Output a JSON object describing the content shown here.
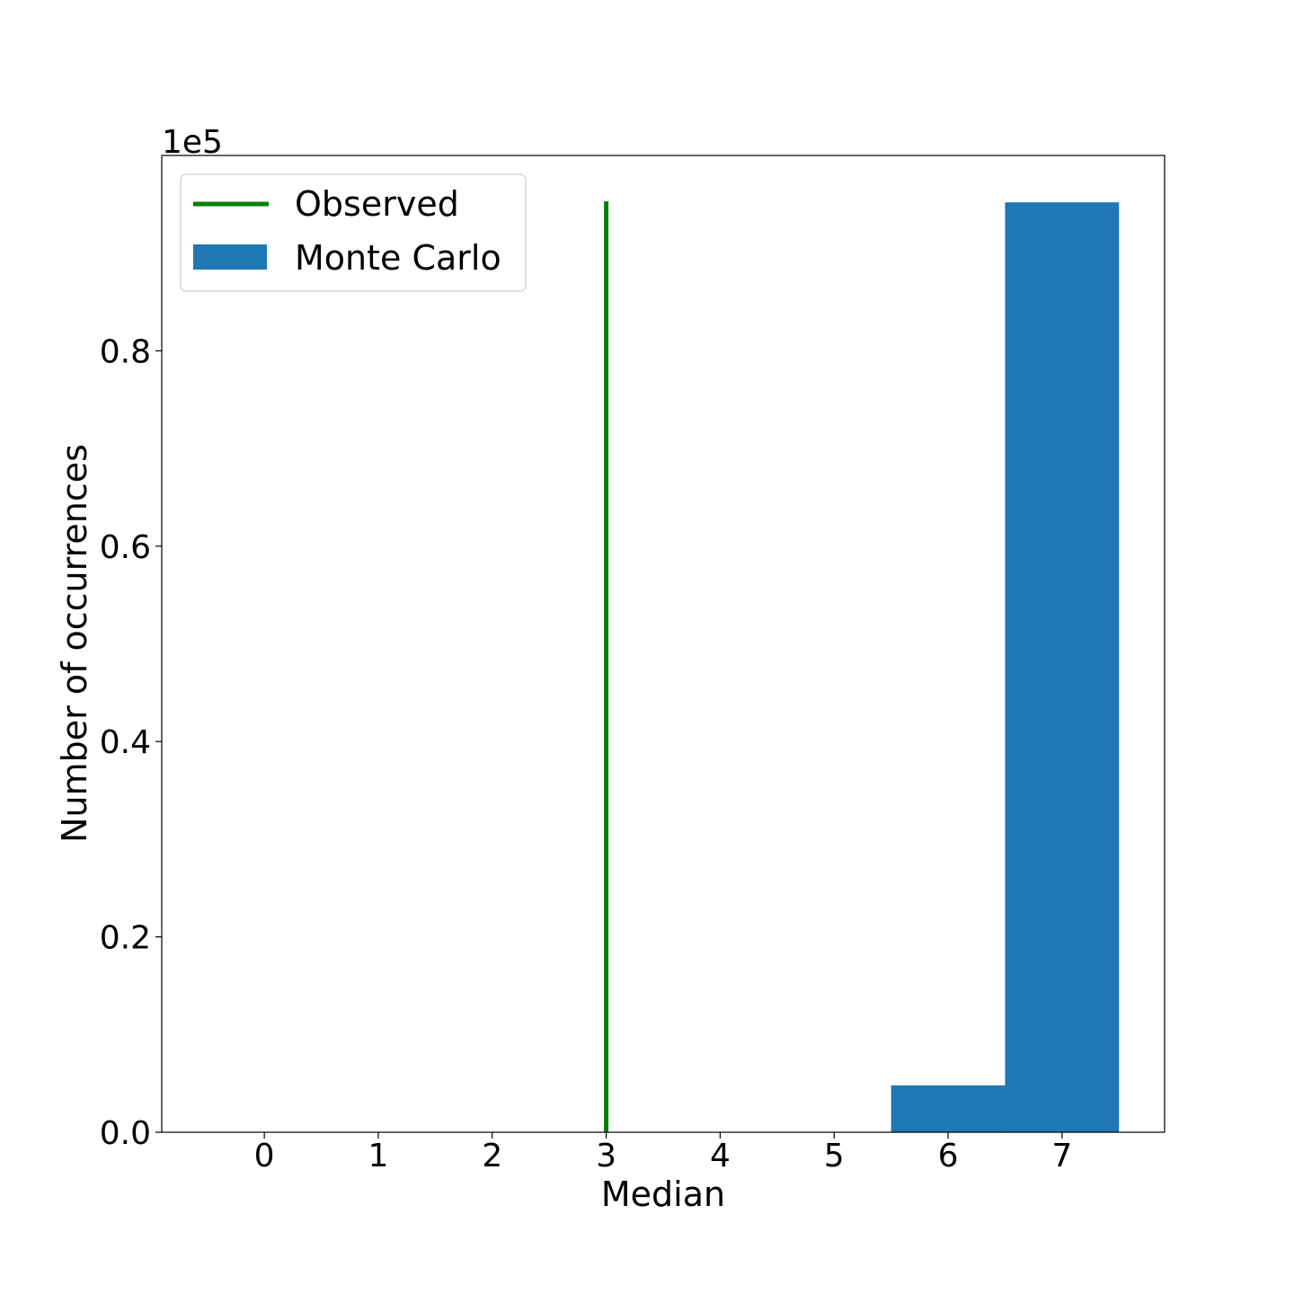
{
  "chart_data": {
    "type": "bar",
    "xlabel": "Median",
    "ylabel": "Number of occurrences",
    "y_offset_label": "1e5",
    "xlim": [
      -0.9,
      7.9
    ],
    "ylim": [
      0,
      1.0
    ],
    "x_ticks": [
      0,
      1,
      2,
      3,
      4,
      5,
      6,
      7
    ],
    "x_tick_labels": [
      "0",
      "1",
      "2",
      "3",
      "4",
      "5",
      "6",
      "7"
    ],
    "y_ticks": [
      0.0,
      0.2,
      0.4,
      0.6,
      0.8
    ],
    "y_tick_labels": [
      "0.0",
      "0.2",
      "0.4",
      "0.6",
      "0.8"
    ],
    "grid": false,
    "legend_position": "top-left",
    "series": [
      {
        "name": "Monte Carlo",
        "kind": "histogram",
        "color": "#1f77b4",
        "bins": [
          {
            "x0": 5.5,
            "x1": 6.5,
            "value": 0.048
          },
          {
            "x0": 6.5,
            "x1": 7.5,
            "value": 0.952
          }
        ]
      },
      {
        "name": "Observed",
        "kind": "vline",
        "color": "#008000",
        "x": 3,
        "y_range": [
          0,
          0.953
        ]
      }
    ]
  }
}
